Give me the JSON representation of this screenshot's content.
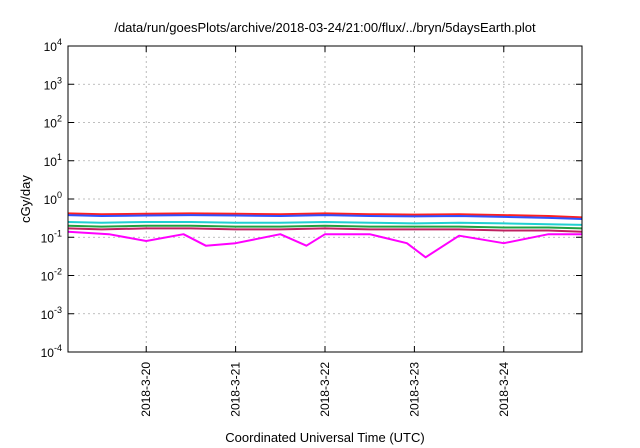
{
  "chart_data": {
    "type": "line",
    "title": "/data/run/goesPlots/archive/2018-03-24/21:00/flux/../bryn/5daysEarth.plot",
    "xlabel": "Coordinated Universal Time (UTC)",
    "ylabel": "cGy/day",
    "yscale": "log",
    "ylim": [
      0.0001,
      10000
    ],
    "y_ticks": [
      {
        "base": "10",
        "exp": "4"
      },
      {
        "base": "10",
        "exp": "3"
      },
      {
        "base": "10",
        "exp": "2"
      },
      {
        "base": "10",
        "exp": "1"
      },
      {
        "base": "10",
        "exp": "0"
      },
      {
        "base": "10",
        "exp": "-1"
      },
      {
        "base": "10",
        "exp": "-2"
      },
      {
        "base": "10",
        "exp": "-3"
      },
      {
        "base": "10",
        "exp": "-4"
      }
    ],
    "xlim": [
      "2018-03-19T03:00",
      "2018-03-24T21:00"
    ],
    "x_tick_labels": [
      "2018-3-20",
      "2018-3-21",
      "2018-3-22",
      "2018-3-23",
      "2018-3-24"
    ],
    "x_tick_dates": [
      "2018-03-20T00:00",
      "2018-03-21T00:00",
      "2018-03-22T00:00",
      "2018-03-23T00:00",
      "2018-03-24T00:00"
    ],
    "grid": true,
    "legend": "none",
    "series": [
      {
        "color": "#ff2020",
        "x": [
          "2018-03-19T03:00",
          "2018-03-19T12:00",
          "2018-03-20T00:00",
          "2018-03-20T12:00",
          "2018-03-21T00:00",
          "2018-03-21T12:00",
          "2018-03-22T00:00",
          "2018-03-22T12:00",
          "2018-03-23T00:00",
          "2018-03-23T12:00",
          "2018-03-24T00:00",
          "2018-03-24T12:00",
          "2018-03-24T21:00"
        ],
        "values": [
          0.42,
          0.4,
          0.41,
          0.42,
          0.41,
          0.4,
          0.42,
          0.4,
          0.39,
          0.4,
          0.38,
          0.36,
          0.33
        ]
      },
      {
        "color": "#3050ff",
        "x": [
          "2018-03-19T03:00",
          "2018-03-19T12:00",
          "2018-03-20T00:00",
          "2018-03-20T12:00",
          "2018-03-21T00:00",
          "2018-03-21T12:00",
          "2018-03-22T00:00",
          "2018-03-22T12:00",
          "2018-03-23T00:00",
          "2018-03-23T12:00",
          "2018-03-24T00:00",
          "2018-03-24T12:00",
          "2018-03-24T21:00"
        ],
        "values": [
          0.38,
          0.36,
          0.37,
          0.38,
          0.37,
          0.36,
          0.38,
          0.36,
          0.35,
          0.36,
          0.34,
          0.32,
          0.3
        ]
      },
      {
        "color": "#20d0d0",
        "x": [
          "2018-03-19T03:00",
          "2018-03-19T12:00",
          "2018-03-20T00:00",
          "2018-03-20T12:00",
          "2018-03-21T00:00",
          "2018-03-21T12:00",
          "2018-03-22T00:00",
          "2018-03-22T12:00",
          "2018-03-23T00:00",
          "2018-03-23T12:00",
          "2018-03-24T00:00",
          "2018-03-24T12:00",
          "2018-03-24T21:00"
        ],
        "values": [
          0.25,
          0.24,
          0.25,
          0.25,
          0.24,
          0.24,
          0.25,
          0.24,
          0.23,
          0.24,
          0.23,
          0.22,
          0.21
        ]
      },
      {
        "color": "#20a040",
        "x": [
          "2018-03-19T03:00",
          "2018-03-19T12:00",
          "2018-03-20T00:00",
          "2018-03-20T12:00",
          "2018-03-21T00:00",
          "2018-03-21T12:00",
          "2018-03-22T00:00",
          "2018-03-22T12:00",
          "2018-03-23T00:00",
          "2018-03-23T12:00",
          "2018-03-24T00:00",
          "2018-03-24T12:00",
          "2018-03-24T21:00"
        ],
        "values": [
          0.2,
          0.19,
          0.2,
          0.2,
          0.19,
          0.19,
          0.2,
          0.19,
          0.19,
          0.19,
          0.18,
          0.18,
          0.17
        ]
      },
      {
        "color": "#c02060",
        "x": [
          "2018-03-19T03:00",
          "2018-03-19T12:00",
          "2018-03-20T00:00",
          "2018-03-20T12:00",
          "2018-03-21T00:00",
          "2018-03-21T12:00",
          "2018-03-22T00:00",
          "2018-03-22T12:00",
          "2018-03-23T00:00",
          "2018-03-23T12:00",
          "2018-03-24T00:00",
          "2018-03-24T12:00",
          "2018-03-24T21:00"
        ],
        "values": [
          0.17,
          0.16,
          0.17,
          0.17,
          0.16,
          0.16,
          0.17,
          0.16,
          0.16,
          0.16,
          0.15,
          0.15,
          0.14
        ]
      },
      {
        "color": "#ff00ff",
        "x": [
          "2018-03-19T03:00",
          "2018-03-19T14:00",
          "2018-03-20T00:00",
          "2018-03-20T10:00",
          "2018-03-20T16:00",
          "2018-03-21T00:00",
          "2018-03-21T12:00",
          "2018-03-21T19:00",
          "2018-03-22T00:00",
          "2018-03-22T12:00",
          "2018-03-22T22:00",
          "2018-03-23T03:00",
          "2018-03-23T12:00",
          "2018-03-24T00:00",
          "2018-03-24T12:00",
          "2018-03-24T21:00"
        ],
        "values": [
          0.14,
          0.12,
          0.08,
          0.12,
          0.06,
          0.07,
          0.12,
          0.06,
          0.12,
          0.12,
          0.07,
          0.03,
          0.11,
          0.07,
          0.12,
          0.12
        ]
      }
    ]
  }
}
